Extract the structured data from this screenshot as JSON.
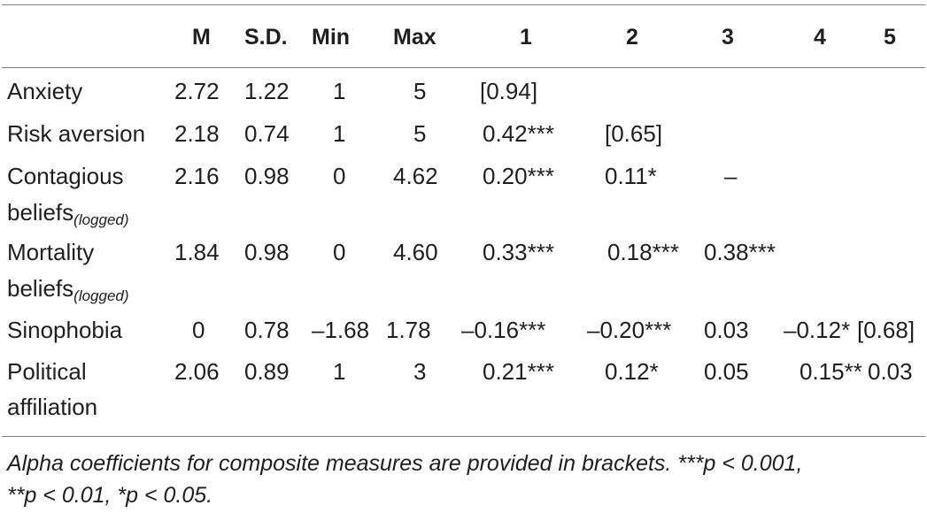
{
  "table": {
    "headers": [
      "M",
      "S.D.",
      "Min",
      "Max",
      "1",
      "2",
      "3",
      "4",
      "5"
    ],
    "rows": [
      {
        "label": [
          "Anxiety"
        ],
        "sub": "",
        "cells": [
          "2.72",
          "1.22",
          "1",
          "5",
          "[0.94]",
          "",
          "",
          "",
          ""
        ]
      },
      {
        "label": [
          "Risk aversion"
        ],
        "sub": "",
        "cells": [
          "2.18",
          "0.74",
          "1",
          "5",
          "0.42***",
          "[0.65]",
          "",
          "",
          ""
        ]
      },
      {
        "label": [
          "Contagious",
          "beliefs"
        ],
        "sub": "(logged)",
        "cells": [
          "2.16",
          "0.98",
          "0",
          "4.62",
          "0.20***",
          "0.11*",
          "–",
          "",
          ""
        ]
      },
      {
        "label": [
          "Mortality",
          "beliefs"
        ],
        "sub": "(logged)",
        "cells": [
          "1.84",
          "0.98",
          "0",
          "4.60",
          "0.33***",
          "0.18***",
          "0.38***",
          "",
          ""
        ]
      },
      {
        "label": [
          "Sinophobia"
        ],
        "sub": "",
        "cells": [
          "0",
          "0.78",
          "–1.68",
          "1.78",
          "–0.16***",
          "–0.20***",
          "0.03",
          "–0.12*",
          "[0.68]"
        ]
      },
      {
        "label": [
          "Political",
          "affiliation"
        ],
        "sub": "",
        "cells": [
          "2.06",
          "0.89",
          "1",
          "3",
          "0.21***",
          "0.12*",
          "0.05",
          "0.15**",
          "0.03"
        ]
      }
    ]
  },
  "note": {
    "line1": "Alpha coefficients for composite measures are provided in brackets. ***p < 0.001,",
    "line2": "**p < 0.01, *p < 0.05."
  }
}
